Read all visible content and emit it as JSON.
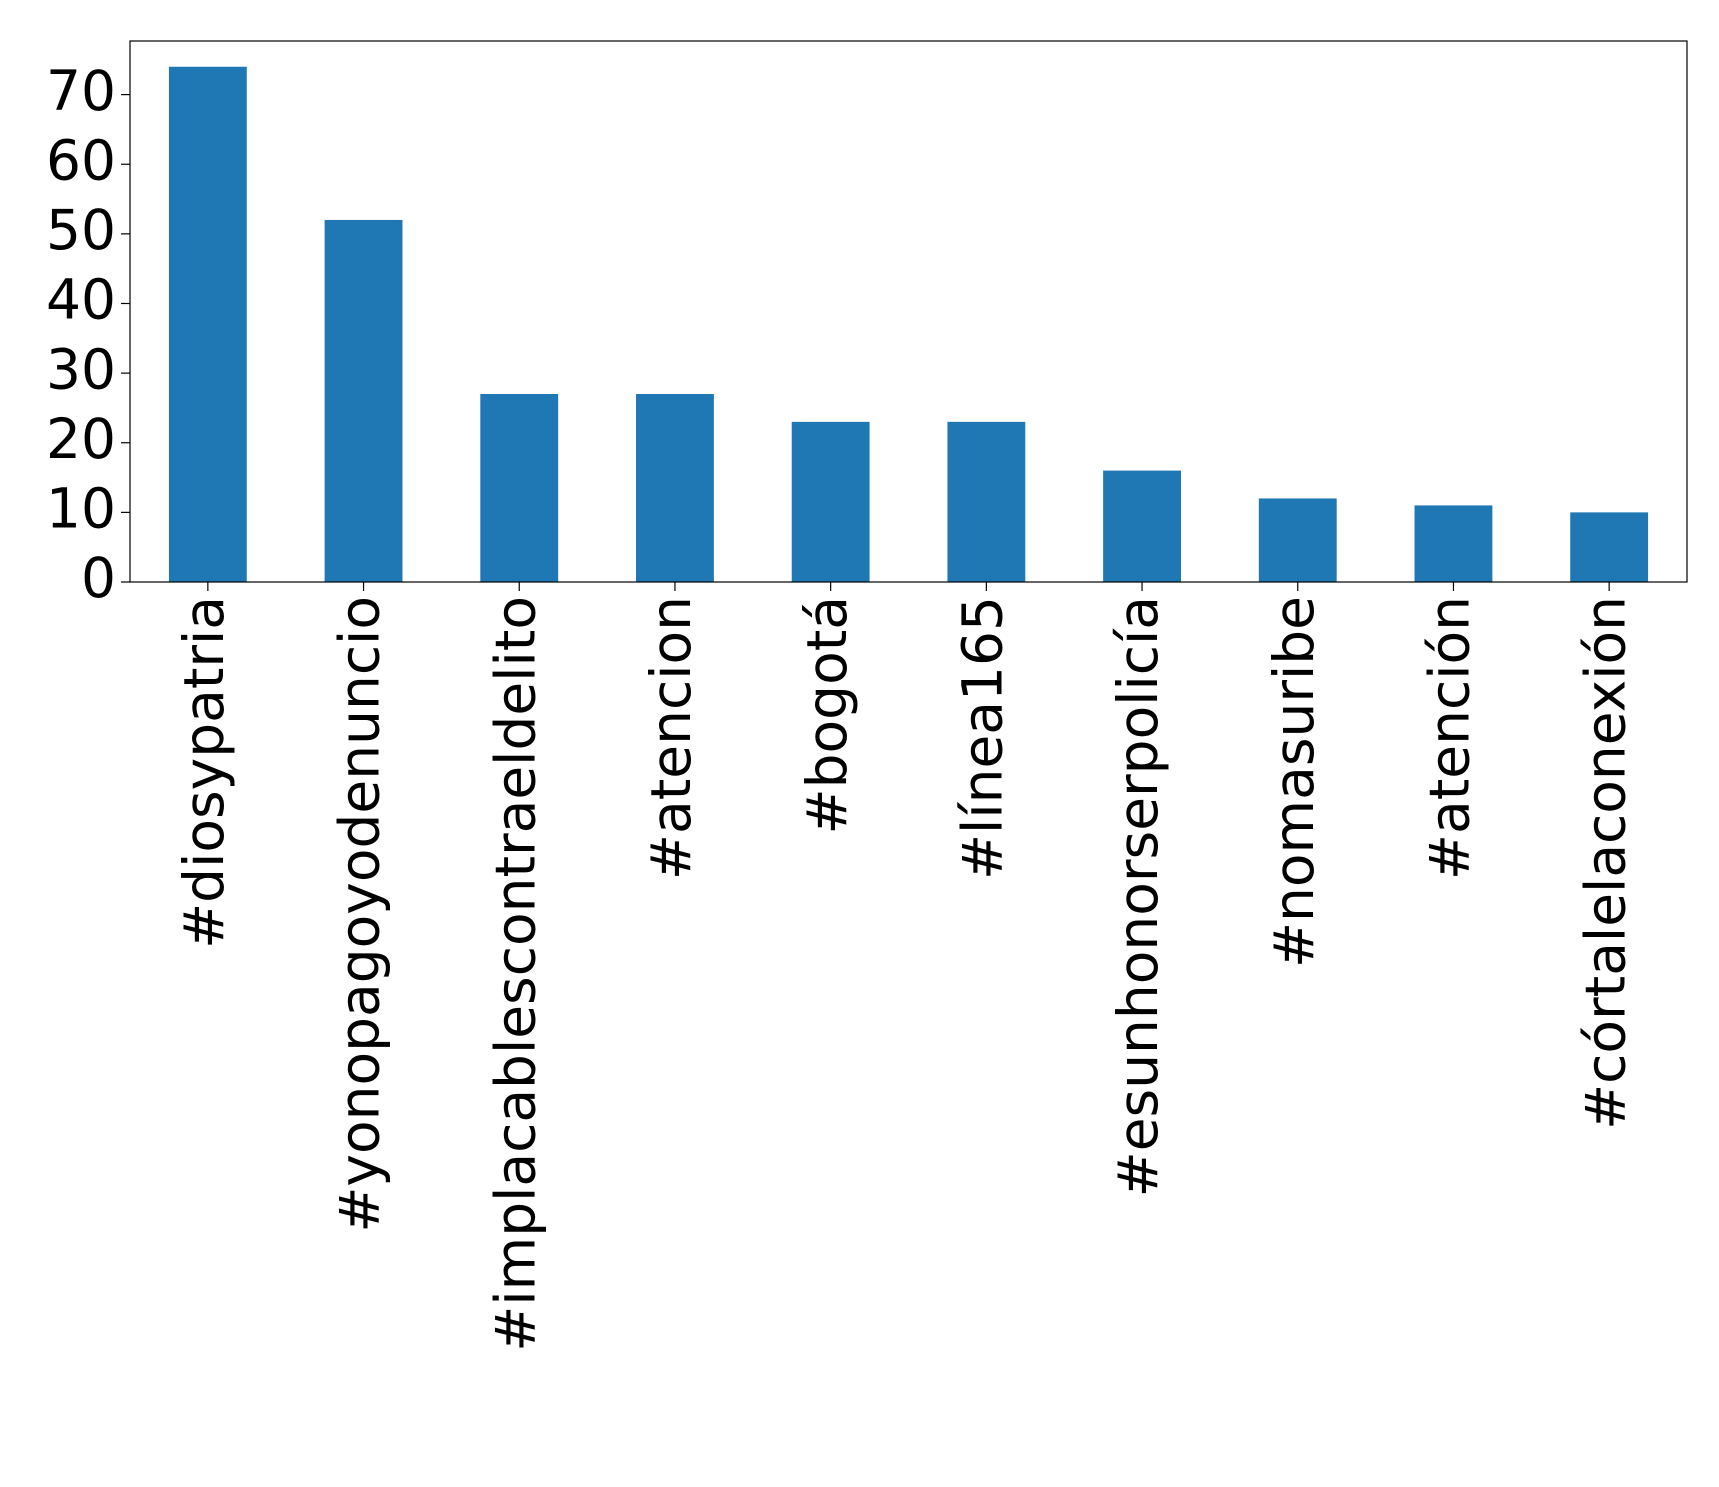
{
  "chart_data": {
    "type": "bar",
    "categories": [
      "#diosypatria",
      "#yonopagoyodenuncio",
      "#implacablescontraeldelito",
      "#atencion",
      "#bogotá",
      "#línea165",
      "#esunhonorserpolicía",
      "#nomasuribe",
      "#atención",
      "#córtalelaconexión"
    ],
    "values": [
      74,
      52,
      27,
      27,
      23,
      23,
      16,
      12,
      11,
      10
    ],
    "color": "#1f77b4",
    "ylim": [
      0,
      77.7
    ],
    "yticks": [
      0,
      10,
      20,
      30,
      40,
      50,
      60,
      70
    ],
    "grid": false
  }
}
